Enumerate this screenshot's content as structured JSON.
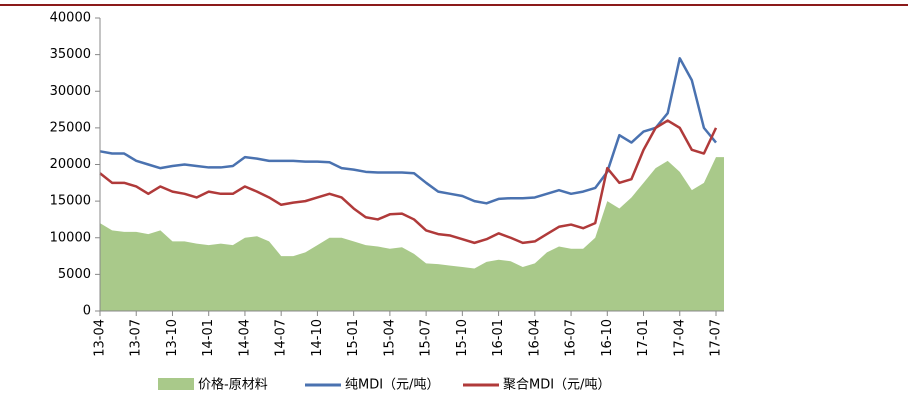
{
  "chart_data": {
    "type": "line",
    "categories": [
      "13-04",
      null,
      null,
      "13-07",
      null,
      null,
      "13-10",
      null,
      null,
      "14-01",
      null,
      null,
      "14-04",
      null,
      null,
      "14-07",
      null,
      null,
      "14-10",
      null,
      null,
      "15-01",
      null,
      null,
      "15-04",
      null,
      null,
      "15-07",
      null,
      null,
      "15-10",
      null,
      null,
      "16-01",
      null,
      null,
      "16-04",
      null,
      null,
      "16-07",
      null,
      null,
      "16-10",
      null,
      null,
      "17-01",
      null,
      null,
      "17-04",
      null,
      null,
      "17-07"
    ],
    "series": [
      {
        "name": "价格-原材料",
        "type": "area",
        "color": "#a9c98a",
        "values": [
          12000,
          11000,
          10800,
          10800,
          10500,
          11000,
          9500,
          9500,
          9200,
          9000,
          9200,
          9000,
          10000,
          10200,
          9500,
          7500,
          7500,
          8000,
          9000,
          10000,
          10000,
          9500,
          9000,
          8800,
          8500,
          8700,
          7800,
          6500,
          6400,
          6200,
          6000,
          5800,
          6700,
          7000,
          6800,
          6000,
          6500,
          8000,
          8800,
          8500,
          8500,
          10000,
          15000,
          14000,
          15500,
          17500,
          19500,
          20500,
          19000,
          16500,
          17500,
          21000
        ]
      },
      {
        "name": "纯MDI（元/吨）",
        "type": "line",
        "color": "#4a72b0",
        "values": [
          21800,
          21500,
          21500,
          20500,
          20000,
          19500,
          19800,
          20000,
          19800,
          19600,
          19600,
          19800,
          21000,
          20800,
          20500,
          20500,
          20500,
          20400,
          20400,
          20300,
          19500,
          19300,
          19000,
          18900,
          18900,
          18900,
          18800,
          17500,
          16300,
          16000,
          15700,
          15000,
          14700,
          15300,
          15400,
          15400,
          15500,
          16000,
          16500,
          16000,
          16300,
          16800,
          19000,
          24000,
          23000,
          24500,
          25000,
          27000,
          34500,
          31500,
          25000,
          23000
        ]
      },
      {
        "name": "聚合MDI（元/吨）",
        "type": "line",
        "color": "#b03a3a",
        "values": [
          18800,
          17500,
          17500,
          17000,
          16000,
          17000,
          16300,
          16000,
          15500,
          16300,
          16000,
          16000,
          17000,
          16300,
          15500,
          14500,
          14800,
          15000,
          15500,
          16000,
          15500,
          14000,
          12800,
          12500,
          13200,
          13300,
          12500,
          11000,
          10500,
          10300,
          9800,
          9300,
          9800,
          10600,
          10000,
          9300,
          9500,
          10500,
          11500,
          11800,
          11300,
          12000,
          19500,
          17500,
          18000,
          22000,
          25000,
          26000,
          25000,
          22000,
          21500,
          25000
        ]
      }
    ],
    "ylim": [
      0,
      40000
    ],
    "yticks": [
      0,
      5000,
      10000,
      15000,
      20000,
      25000,
      30000,
      35000,
      40000
    ]
  }
}
